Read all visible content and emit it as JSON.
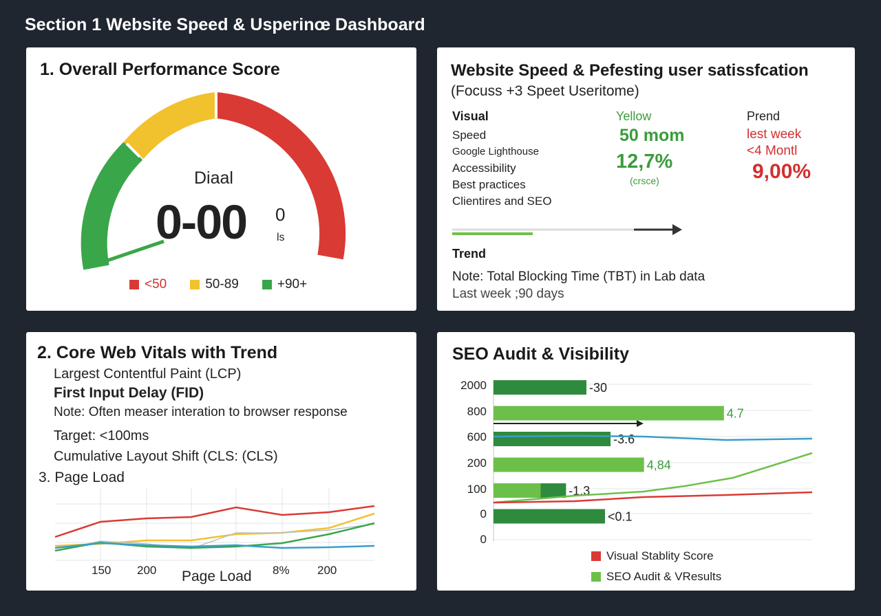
{
  "page": {
    "title": "Section 1 Website Speed & Usperinœ Dashboard"
  },
  "colors": {
    "background": "#1f2630",
    "card": "#ffffff",
    "red": "#d93a34",
    "yellow": "#f2c12e",
    "green": "#3aa64a",
    "light_green": "#6cc04a",
    "dark_green": "#2e8b3e",
    "blue": "#3a9ec9"
  },
  "performance": {
    "title": "1. Overall Performance Score",
    "gauge_label": "Diaal",
    "gauge_value": "0-00",
    "gauge_suffix": "0",
    "gauge_unit": "ls",
    "legend": [
      {
        "label": "<50",
        "color": "#d93a34"
      },
      {
        "label": "50-89",
        "color": "#f2c12e"
      },
      {
        "label": "+90+",
        "color": "#3aa64a"
      }
    ]
  },
  "speed": {
    "title": "Website Speed & Pefesting user satissfcation",
    "subtitle": "(Focuss +3 Speet Useritome)",
    "visual_header": "Visual",
    "metrics": [
      "Speed",
      "Google Lighthouse",
      "Accessibility",
      "Best practices",
      "Clientires and SEO"
    ],
    "yellow_header": "Yellow",
    "yellow_value1": "50 mom",
    "yellow_value2": "12,7%",
    "yellow_note": "(crsсе)",
    "prend_header": "Prend",
    "prend_line1": "lest week",
    "prend_line2": "<4 Montl",
    "prend_value": "9,00%",
    "progress_fraction": 0.2,
    "trend_label": "Trend",
    "note": "Note: Total Blocking Time (TBT) in Lab data",
    "period": "Last week ;90 days"
  },
  "vitals": {
    "title": "2. Core Web Vitals with Trend",
    "lines": [
      {
        "text": "Largest Contentful Paint (LCP)",
        "bold": false
      },
      {
        "text": "First Input Delay (FID)",
        "bold": true
      },
      {
        "text": "Note: Often measer interation to browser response",
        "bold": false
      },
      {
        "text": "Target: <100ms",
        "bold": false
      },
      {
        "text": "Cumulative Layout Shift (CLS: (CLS)",
        "bold": false
      }
    ],
    "page_load_title": "3. Page Load",
    "x_ticks": [
      "150",
      "200",
      "8%",
      "200"
    ],
    "x_label": "Page Load"
  },
  "seo": {
    "title": "SEO Audit & Visibility",
    "y_ticks": [
      "2000",
      "800",
      "600",
      "200",
      "100",
      "0",
      "0"
    ],
    "bars": [
      {
        "label": "-30",
        "value": 100,
        "shade": "dark"
      },
      {
        "label": "4.7",
        "value": 248,
        "shade": "light"
      },
      {
        "label": "-3.6",
        "value": 126,
        "shade": "dark"
      },
      {
        "label": "4,84",
        "value": 162,
        "shade": "light"
      },
      {
        "label": "-1.3",
        "value": 78,
        "shade": "mixed"
      },
      {
        "label": "<0.1",
        "value": 120,
        "shade": "dark"
      }
    ],
    "legend": [
      {
        "label": "Visual Stablity Score",
        "color": "#d93a34"
      },
      {
        "label": "SEO Audit & VResults",
        "color": "#6cc04a"
      }
    ]
  }
}
